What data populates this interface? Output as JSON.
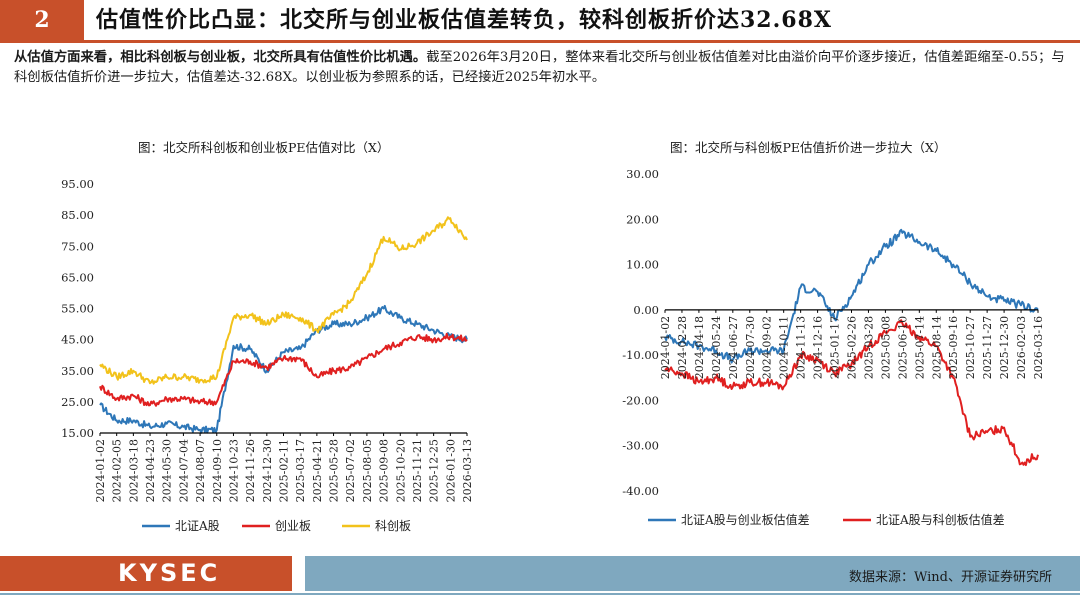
{
  "header": {
    "number": "2",
    "title": "估值性价比凸显：北交所与创业板估值差转负，较科创板折价达32.68X"
  },
  "paragraph": {
    "bold": "从估值方面来看，相比科创板与创业板，北交所具有估值性价比机遇。",
    "rest": "截至2026年3月20日，整体来看北交所与创业板估值差对比由溢价向平价逐步接近，估值差距缩至-0.55；与科创板估值折价进一步拉大，估值差达-32.68X。以创业板为参照系的话，已经接近2025年初水平。"
  },
  "footer": {
    "logo": "KYSEC",
    "source": "数据来源：Wind、开源证券研究所"
  },
  "chart_data": [
    {
      "type": "line",
      "title": "图：北交所科创板和创业板PE估值对比（X）",
      "xlabel": "",
      "ylabel": "",
      "ylim": [
        15,
        95
      ],
      "yticks": [
        "95.00",
        "85.00",
        "75.00",
        "65.00",
        "55.00",
        "45.00",
        "35.00",
        "25.00",
        "15.00"
      ],
      "x": [
        "2024-01-02",
        "2024-02-05",
        "2024-03-18",
        "2024-04-23",
        "2024-05-30",
        "2024-07-04",
        "2024-08-07",
        "2024-09-10",
        "2024-10-23",
        "2024-11-26",
        "2024-12-30",
        "2025-02-11",
        "2025-03-17",
        "2025-04-21",
        "2025-05-28",
        "2025-07-02",
        "2025-08-05",
        "2025-09-08",
        "2025-10-20",
        "2025-11-21",
        "2025-12-25",
        "2026-01-30",
        "2026-03-13"
      ],
      "legend": "bottom",
      "series": [
        {
          "name": "北证A股",
          "color": "#2e77b8",
          "values": [
            24,
            19,
            19,
            17,
            18,
            17,
            16,
            16,
            43,
            42,
            35,
            41,
            42,
            48,
            50,
            50,
            52,
            55,
            52,
            50,
            48,
            46,
            45
          ]
        },
        {
          "name": "创业板",
          "color": "#e02020",
          "values": [
            30,
            26,
            27,
            24,
            26,
            26,
            25,
            25,
            38,
            38,
            36,
            39,
            39,
            33,
            35,
            36,
            39,
            42,
            44,
            46,
            45,
            46,
            45
          ]
        },
        {
          "name": "科创板",
          "color": "#f2c21b",
          "values": [
            37,
            33,
            35,
            31,
            33,
            33,
            32,
            33,
            52,
            53,
            50,
            53,
            52,
            48,
            53,
            57,
            66,
            78,
            74,
            76,
            80,
            84,
            77
          ]
        }
      ]
    },
    {
      "type": "line",
      "title": "图：北交所与科创板PE估值折价进一步拉大（X）",
      "xlabel": "",
      "ylabel": "",
      "ylim": [
        -40,
        30
      ],
      "yticks": [
        "30.00",
        "20.00",
        "10.00",
        "0.00",
        "-10.00",
        "-20.00",
        "-30.00",
        "-40.00"
      ],
      "x": [
        "2024-01-02",
        "2024-02-28",
        "2024-04-18",
        "2024-05-24",
        "2024-06-27",
        "2024-07-30",
        "2024-09-02",
        "2024-10-11",
        "2024-11-13",
        "2024-12-16",
        "2025-01-17",
        "2025-02-26",
        "2025-03-28",
        "2025-05-08",
        "2025-06-10",
        "2025-07-14",
        "2025-08-14",
        "2025-09-16",
        "2025-10-27",
        "2025-11-27",
        "2025-12-30",
        "2026-02-03",
        "2026-03-16"
      ],
      "legend": "bottom",
      "series": [
        {
          "name": "北证A股与创业板估值差",
          "color": "#2e77b8",
          "values": [
            -6,
            -7,
            -8,
            -9,
            -11,
            -9,
            -9,
            -9,
            5,
            4,
            -2,
            3,
            10,
            14,
            17,
            15,
            13,
            10,
            6,
            3,
            2,
            1,
            0
          ]
        },
        {
          "name": "北证A股与科创板估值差",
          "color": "#e02020",
          "values": [
            -13,
            -14,
            -16,
            -15,
            -17,
            -16,
            -16,
            -17,
            -10,
            -11,
            -14,
            -12,
            -8,
            -5,
            -3,
            -6,
            -8,
            -15,
            -28,
            -27,
            -26,
            -34,
            -32
          ]
        }
      ]
    }
  ]
}
